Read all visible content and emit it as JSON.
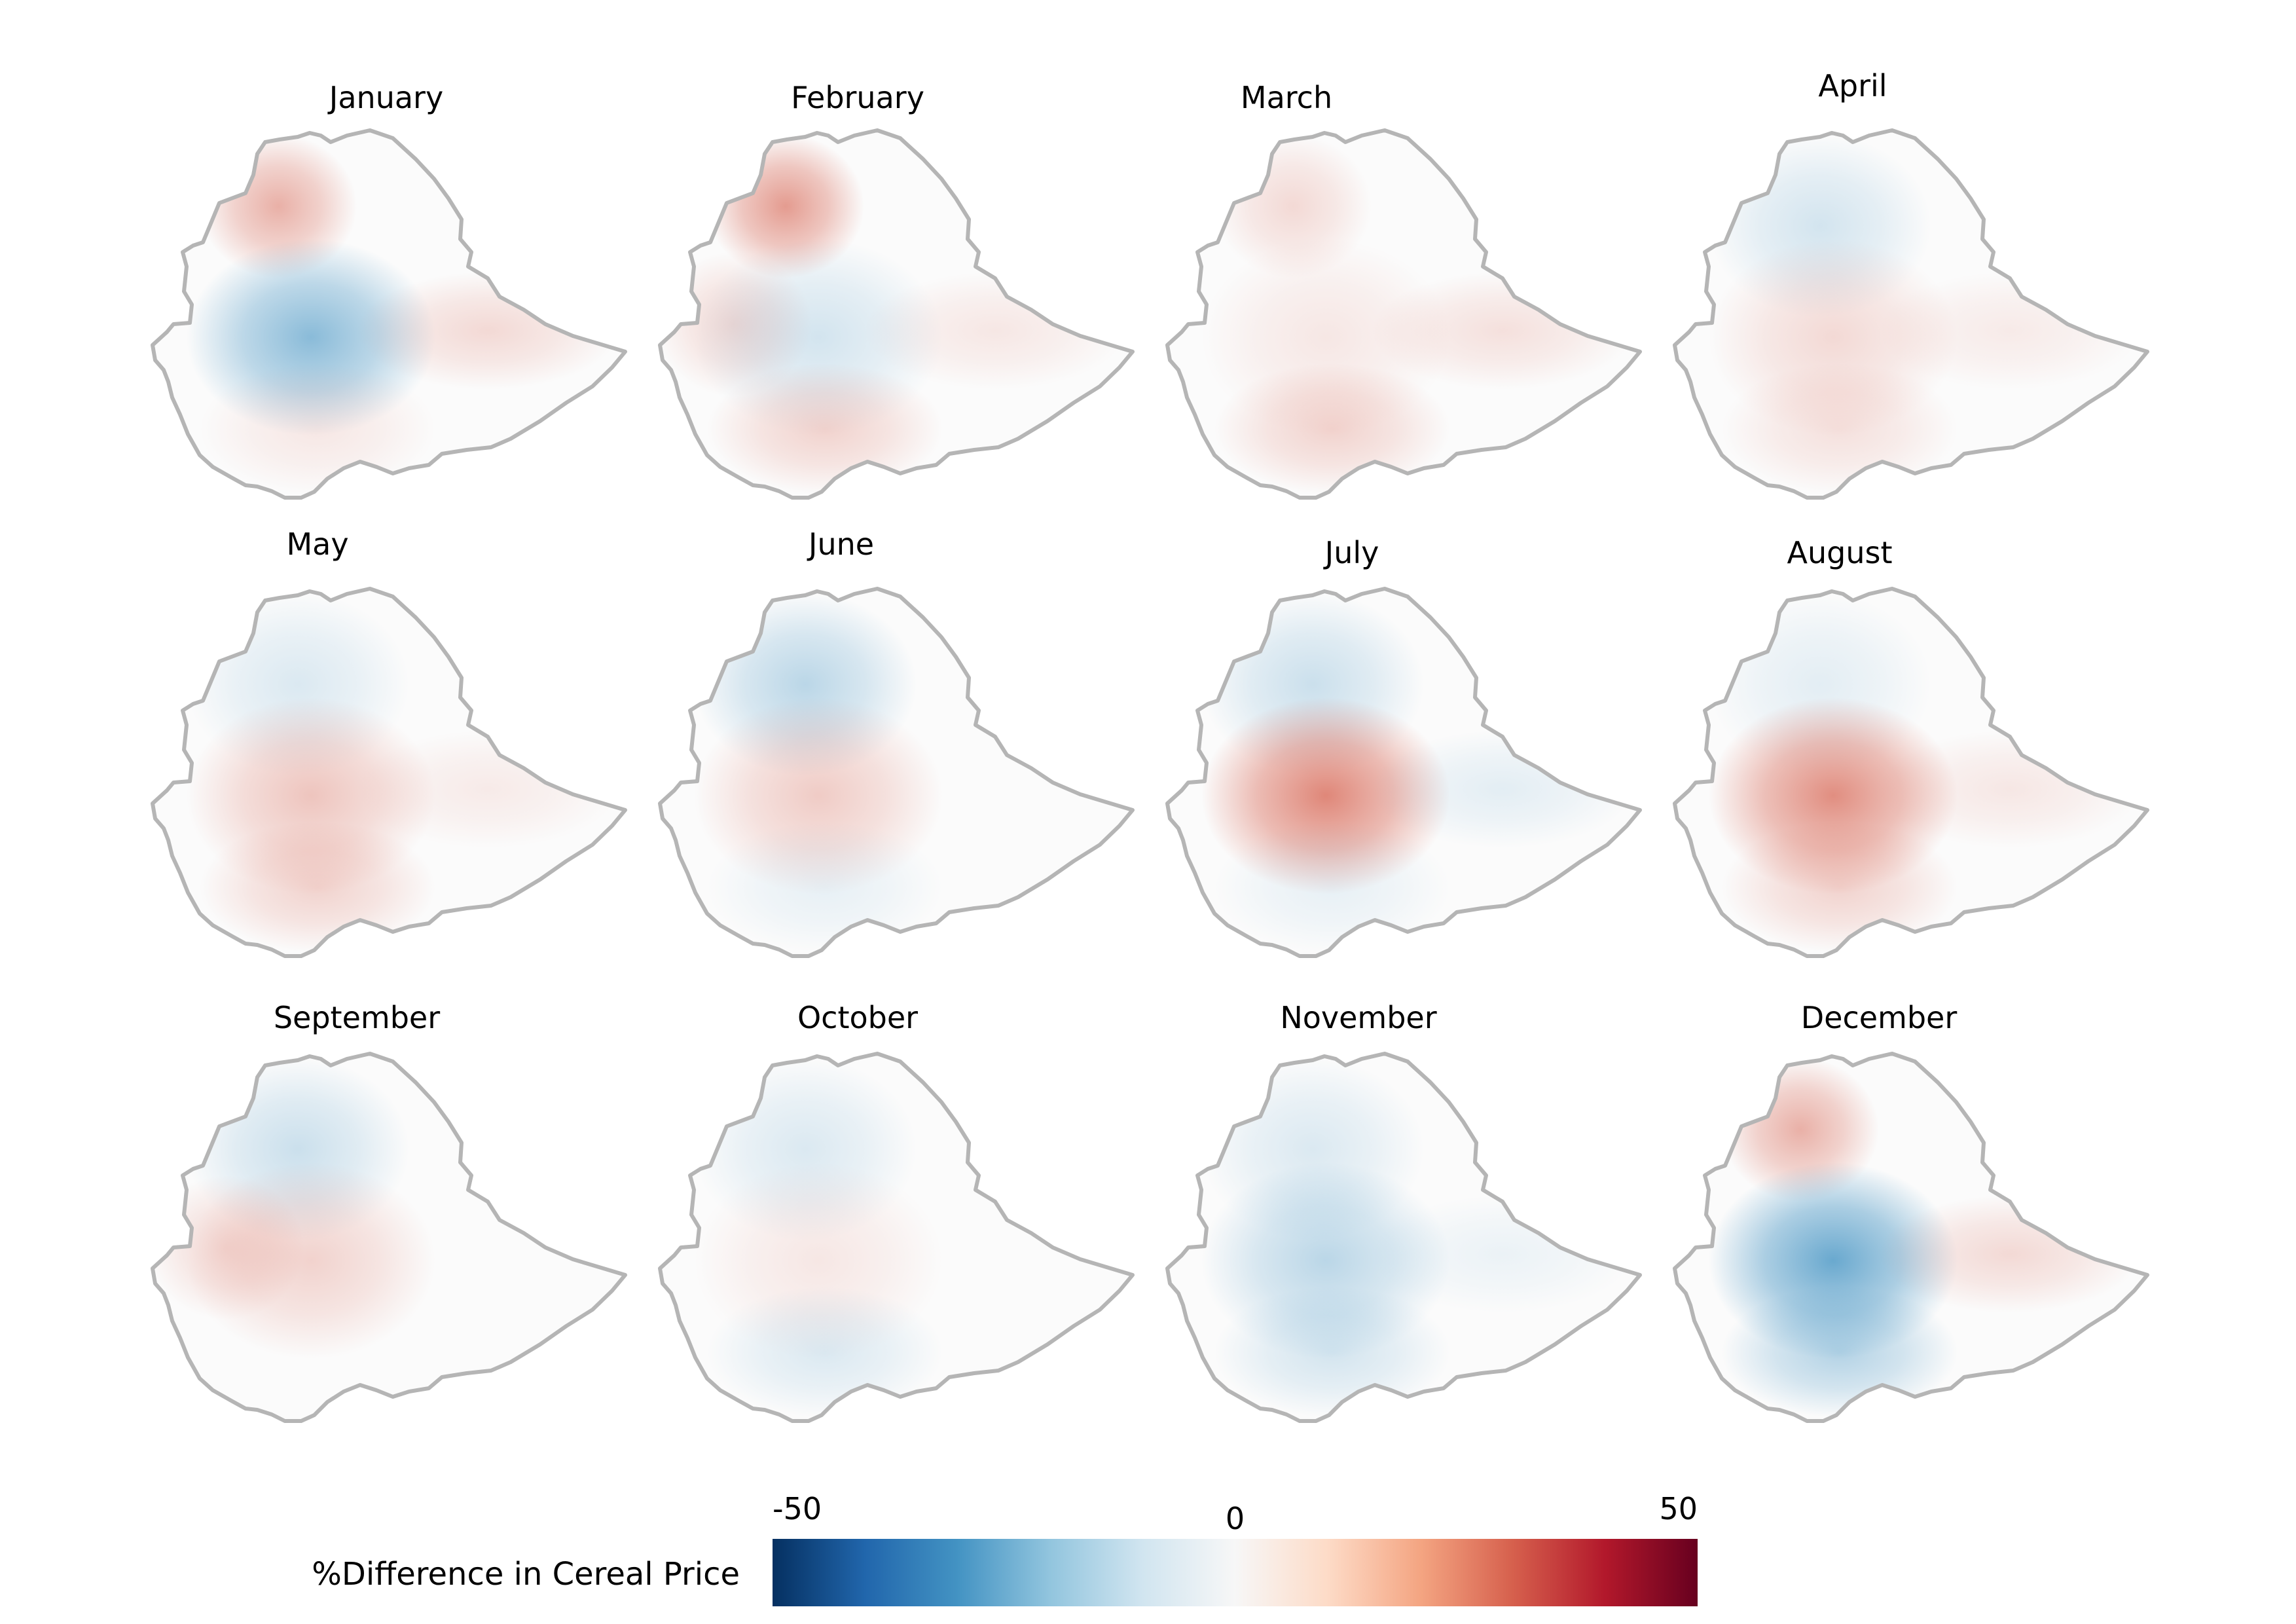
{
  "months": [
    {
      "label": "January",
      "pattern": [
        [
          "nw",
          0.22
        ],
        [
          "center",
          -0.28
        ],
        [
          "east",
          0.1
        ],
        [
          "south",
          0.06
        ]
      ]
    },
    {
      "label": "February",
      "pattern": [
        [
          "nw",
          0.28
        ],
        [
          "west",
          0.1
        ],
        [
          "center",
          -0.1
        ],
        [
          "south",
          0.12
        ],
        [
          "east",
          0.06
        ]
      ]
    },
    {
      "label": "March",
      "pattern": [
        [
          "nw",
          0.1
        ],
        [
          "center",
          0.06
        ],
        [
          "south",
          0.12
        ],
        [
          "east",
          0.08
        ]
      ]
    },
    {
      "label": "April",
      "pattern": [
        [
          "north",
          -0.1
        ],
        [
          "center",
          0.1
        ],
        [
          "south",
          0.08
        ],
        [
          "east",
          0.05
        ]
      ]
    },
    {
      "label": "May",
      "pattern": [
        [
          "north",
          -0.08
        ],
        [
          "center",
          0.16
        ],
        [
          "south",
          0.12
        ],
        [
          "east",
          0.05
        ]
      ]
    },
    {
      "label": "June",
      "pattern": [
        [
          "north",
          -0.16
        ],
        [
          "center",
          0.14
        ],
        [
          "south",
          -0.05
        ]
      ]
    },
    {
      "label": "July",
      "pattern": [
        [
          "north",
          -0.12
        ],
        [
          "center",
          0.34
        ],
        [
          "east",
          -0.06
        ],
        [
          "south",
          -0.05
        ]
      ]
    },
    {
      "label": "August",
      "pattern": [
        [
          "north",
          -0.06
        ],
        [
          "center",
          0.32
        ],
        [
          "south",
          0.12
        ],
        [
          "east",
          0.06
        ]
      ]
    },
    {
      "label": "September",
      "pattern": [
        [
          "north",
          -0.12
        ],
        [
          "center",
          0.12
        ],
        [
          "west",
          0.1
        ]
      ]
    },
    {
      "label": "October",
      "pattern": [
        [
          "north",
          -0.08
        ],
        [
          "center",
          0.06
        ],
        [
          "south",
          -0.08
        ]
      ]
    },
    {
      "label": "November",
      "pattern": [
        [
          "north",
          -0.08
        ],
        [
          "center",
          -0.16
        ],
        [
          "south",
          -0.1
        ],
        [
          "east",
          -0.04
        ]
      ]
    },
    {
      "label": "December",
      "pattern": [
        [
          "nw",
          0.22
        ],
        [
          "center",
          -0.36
        ],
        [
          "south",
          -0.18
        ],
        [
          "east",
          0.1
        ]
      ]
    }
  ],
  "legend": {
    "title": "%Difference in Cereal Price",
    "ticks": [
      {
        "value": -50,
        "label": "-50"
      },
      {
        "value": 0,
        "label": "0"
      },
      {
        "value": 50,
        "label": "50"
      }
    ],
    "range": [
      -50,
      50
    ],
    "colors": [
      "#053061",
      "#2166ac",
      "#4393c3",
      "#92c5de",
      "#d1e5f0",
      "#f7f7f7",
      "#fddbc7",
      "#f4a582",
      "#d6604d",
      "#b2182b",
      "#67001f"
    ]
  },
  "style": {
    "outline_color": "#b5b5b5",
    "background": "#ffffff"
  }
}
